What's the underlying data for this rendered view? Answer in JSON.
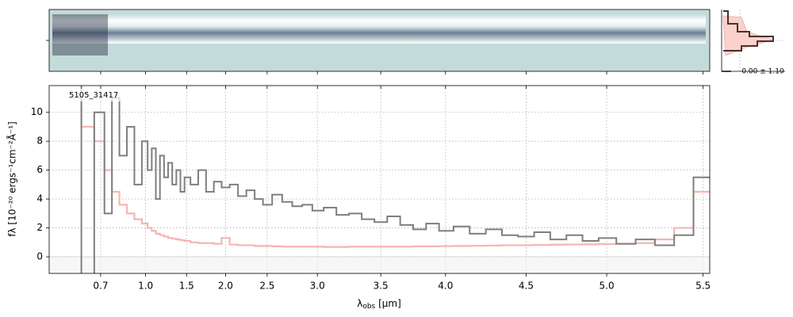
{
  "chart_data": {
    "type": "step",
    "object_label": "5105_31417",
    "profile_label": "0.00 ± 1.10",
    "xlabel": {
      "symbol": "λ",
      "sub": "obs",
      "unit": " [μm]"
    },
    "ylabel": "fλ [10⁻²⁰ ergs⁻¹cm⁻²Å⁻¹]",
    "x": [
      0.6,
      0.65,
      0.7,
      0.75,
      0.8,
      0.85,
      0.9,
      0.95,
      1.0,
      1.05,
      1.1,
      1.15,
      1.2,
      1.25,
      1.3,
      1.35,
      1.4,
      1.45,
      1.5,
      1.6,
      1.7,
      1.8,
      1.9,
      2.0,
      2.1,
      2.2,
      2.3,
      2.4,
      2.5,
      2.6,
      2.7,
      2.8,
      2.9,
      3.0,
      3.1,
      3.2,
      3.3,
      3.4,
      3.5,
      3.6,
      3.7,
      3.8,
      3.9,
      4.0,
      4.1,
      4.2,
      4.3,
      4.4,
      4.5,
      4.6,
      4.7,
      4.8,
      4.9,
      5.0,
      5.1,
      5.2,
      5.3,
      5.4,
      5.5
    ],
    "series": [
      {
        "color": "#f4b6b0",
        "values": [
          11,
          9,
          8,
          6,
          4.5,
          3.6,
          3.0,
          2.6,
          2.3,
          2.0,
          1.8,
          1.6,
          1.5,
          1.4,
          1.3,
          1.25,
          1.2,
          1.15,
          1.1,
          1.0,
          0.95,
          0.95,
          0.9,
          1.3,
          0.85,
          0.8,
          0.8,
          0.75,
          0.75,
          0.72,
          0.7,
          0.7,
          0.7,
          0.7,
          0.68,
          0.68,
          0.7,
          0.7,
          0.7,
          0.7,
          0.7,
          0.72,
          0.72,
          0.74,
          0.75,
          0.76,
          0.78,
          0.8,
          0.8,
          0.82,
          0.84,
          0.85,
          0.86,
          0.88,
          0.9,
          0.95,
          1.2,
          2.0,
          4.5
        ]
      },
      {
        "color": "#7f7f7f",
        "values": [
          12,
          -2,
          10,
          3,
          11,
          7,
          9,
          5,
          8,
          6,
          7.5,
          4,
          7,
          5.5,
          6.5,
          5,
          6,
          4.5,
          5.5,
          5,
          6,
          4.5,
          5.2,
          4.8,
          5.0,
          4.2,
          4.6,
          4.0,
          3.6,
          4.3,
          3.8,
          3.5,
          3.6,
          3.2,
          3.4,
          2.9,
          3.0,
          2.6,
          2.4,
          2.8,
          2.2,
          1.9,
          2.3,
          1.8,
          2.1,
          1.6,
          1.9,
          1.5,
          1.4,
          1.7,
          1.2,
          1.5,
          1.1,
          1.3,
          0.9,
          1.2,
          0.8,
          1.5,
          5.5
        ]
      }
    ],
    "xlim": [
      0.5,
      5.53
    ],
    "xticks": [
      0.7,
      {
        "value": 1.0,
        "label": "1.0"
      },
      1.5,
      {
        "value": 2.0,
        "label": "2.0"
      },
      2.5,
      {
        "value": 3.0,
        "label": "3.0"
      },
      3.5,
      {
        "value": 4.0,
        "label": "4.0"
      },
      4.5,
      {
        "value": 5.0,
        "label": "5.0"
      },
      5.5
    ],
    "ylim": [
      -1.15,
      11.85
    ],
    "yticks": [
      0,
      2,
      4,
      6,
      8,
      10
    ],
    "grid": true
  }
}
